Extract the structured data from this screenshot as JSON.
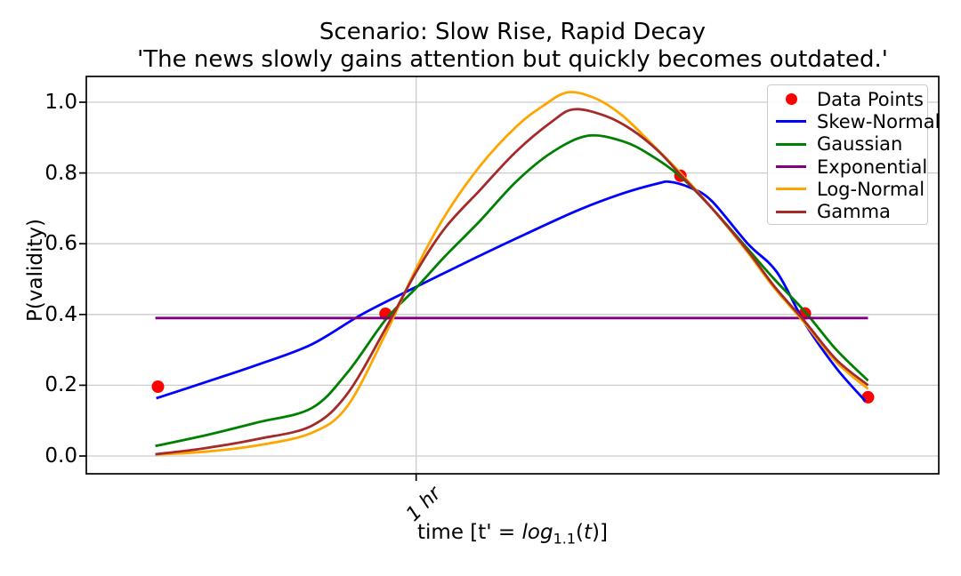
{
  "title": {
    "line1": "Scenario: Slow Rise, Rapid Decay",
    "line2": "'The news slowly gains attention but quickly becomes outdated.'"
  },
  "axes": {
    "ylabel": "P(validity)",
    "xlabel_parts": {
      "prefix": "time [t' = ",
      "func": "log",
      "base": "1.1",
      "open": "(",
      "var": "t",
      "close": ")]"
    },
    "xtick_label": "1 hr"
  },
  "legend": {
    "items": [
      {
        "label": "Data Points",
        "marker": "dot",
        "color": "#ff0000"
      },
      {
        "label": "Skew-Normal",
        "marker": "line",
        "color": "#0000ff"
      },
      {
        "label": "Gaussian",
        "marker": "line",
        "color": "#008000"
      },
      {
        "label": "Exponential",
        "marker": "line",
        "color": "#800080"
      },
      {
        "label": "Log-Normal",
        "marker": "line",
        "color": "#ffa500"
      },
      {
        "label": "Gamma",
        "marker": "line",
        "color": "#a52a2a"
      }
    ]
  },
  "chart_data": {
    "type": "line",
    "title": "Scenario: Slow Rise, Rapid Decay",
    "subtitle": "'The news slowly gains attention but quickly becomes outdated.'",
    "xlabel": "time [t' = log_1.1(t)]",
    "ylabel": "P(validity)",
    "grid": true,
    "legend_position": "upper right",
    "ylim": [
      -0.0503,
      1.0729
    ],
    "yticks": [
      0.0,
      0.2,
      0.4,
      0.6,
      0.8,
      1.0
    ],
    "xtick": {
      "pos": 0.387,
      "label": "1 hr"
    },
    "grid_color": "#cccccc",
    "data_points": {
      "name": "Data Points",
      "color": "#ff0000",
      "points": [
        [
          0.084,
          0.196
        ],
        [
          0.351,
          0.402
        ],
        [
          0.697,
          0.792
        ],
        [
          0.843,
          0.403
        ],
        [
          0.917,
          0.166
        ]
      ]
    },
    "series": [
      {
        "name": "Skew-Normal",
        "color": "#0000ff",
        "points": [
          [
            0.082,
            0.163
          ],
          [
            0.139,
            0.208
          ],
          [
            0.201,
            0.258
          ],
          [
            0.264,
            0.315
          ],
          [
            0.323,
            0.4
          ],
          [
            0.387,
            0.478
          ],
          [
            0.452,
            0.555
          ],
          [
            0.515,
            0.627
          ],
          [
            0.577,
            0.695
          ],
          [
            0.629,
            0.742
          ],
          [
            0.67,
            0.77
          ],
          [
            0.685,
            0.775
          ],
          [
            0.71,
            0.757
          ],
          [
            0.734,
            0.72
          ],
          [
            0.776,
            0.6
          ],
          [
            0.81,
            0.52
          ],
          [
            0.843,
            0.375
          ],
          [
            0.88,
            0.248
          ],
          [
            0.914,
            0.155
          ]
        ]
      },
      {
        "name": "Gaussian",
        "color": "#008000",
        "points": [
          [
            0.081,
            0.028
          ],
          [
            0.139,
            0.058
          ],
          [
            0.201,
            0.095
          ],
          [
            0.264,
            0.135
          ],
          [
            0.306,
            0.235
          ],
          [
            0.351,
            0.385
          ],
          [
            0.387,
            0.475
          ],
          [
            0.421,
            0.565
          ],
          [
            0.462,
            0.665
          ],
          [
            0.504,
            0.775
          ],
          [
            0.546,
            0.858
          ],
          [
            0.588,
            0.905
          ],
          [
            0.629,
            0.89
          ],
          [
            0.661,
            0.852
          ],
          [
            0.697,
            0.79
          ],
          [
            0.734,
            0.7
          ],
          [
            0.776,
            0.585
          ],
          [
            0.807,
            0.5
          ],
          [
            0.843,
            0.408
          ],
          [
            0.88,
            0.3
          ],
          [
            0.917,
            0.213
          ]
        ]
      },
      {
        "name": "Exponential",
        "color": "#800080",
        "points": [
          [
            0.081,
            0.39
          ],
          [
            0.917,
            0.39
          ]
        ]
      },
      {
        "name": "Log-Normal",
        "color": "#ffa500",
        "points": [
          [
            0.081,
            0.004
          ],
          [
            0.139,
            0.012
          ],
          [
            0.201,
            0.03
          ],
          [
            0.264,
            0.065
          ],
          [
            0.306,
            0.14
          ],
          [
            0.351,
            0.345
          ],
          [
            0.387,
            0.53
          ],
          [
            0.421,
            0.68
          ],
          [
            0.462,
            0.82
          ],
          [
            0.504,
            0.93
          ],
          [
            0.536,
            0.99
          ],
          [
            0.565,
            1.028
          ],
          [
            0.598,
            1.01
          ],
          [
            0.629,
            0.962
          ],
          [
            0.661,
            0.888
          ],
          [
            0.697,
            0.8
          ],
          [
            0.734,
            0.7
          ],
          [
            0.776,
            0.575
          ],
          [
            0.807,
            0.475
          ],
          [
            0.843,
            0.375
          ],
          [
            0.88,
            0.265
          ],
          [
            0.917,
            0.19
          ]
        ]
      },
      {
        "name": "Gamma",
        "color": "#a52a2a",
        "points": [
          [
            0.081,
            0.005
          ],
          [
            0.139,
            0.022
          ],
          [
            0.201,
            0.048
          ],
          [
            0.264,
            0.085
          ],
          [
            0.306,
            0.175
          ],
          [
            0.351,
            0.36
          ],
          [
            0.387,
            0.52
          ],
          [
            0.421,
            0.645
          ],
          [
            0.462,
            0.752
          ],
          [
            0.504,
            0.86
          ],
          [
            0.546,
            0.945
          ],
          [
            0.572,
            0.98
          ],
          [
            0.608,
            0.962
          ],
          [
            0.64,
            0.922
          ],
          [
            0.671,
            0.862
          ],
          [
            0.697,
            0.795
          ],
          [
            0.734,
            0.7
          ],
          [
            0.776,
            0.58
          ],
          [
            0.807,
            0.48
          ],
          [
            0.843,
            0.38
          ],
          [
            0.88,
            0.272
          ],
          [
            0.917,
            0.2
          ]
        ]
      }
    ]
  }
}
